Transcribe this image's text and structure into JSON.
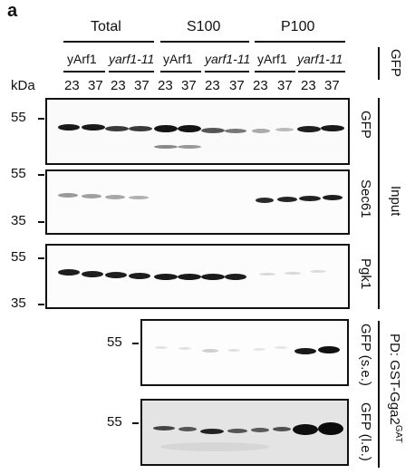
{
  "figure": {
    "panel_letter": "a",
    "fractions": [
      "Total",
      "S100",
      "P100"
    ],
    "strains": [
      "yArf1",
      "yarf1-11",
      "yArf1",
      "yarf1-11",
      "yArf1",
      "yarf1-11"
    ],
    "kda_label": "kDa",
    "temperatures": [
      "23",
      "37",
      "23",
      "37",
      "23",
      "37",
      "23",
      "37",
      "23",
      "37",
      "23",
      "37"
    ],
    "gfp_label": "GFP",
    "input_label": "Input",
    "pulldown_label": "PD: GST-Gga2",
    "pulldown_superscript": "GAT",
    "blots": [
      {
        "label": "GFP",
        "markers": [
          "55"
        ]
      },
      {
        "label": "Sec61",
        "markers": [
          "55",
          "35"
        ]
      },
      {
        "label": "Pgk1",
        "markers": [
          "55",
          "35"
        ]
      },
      {
        "label": "GFP (s.e.)",
        "markers": [
          "55"
        ]
      },
      {
        "label": "GFP (l.e.)",
        "markers": [
          "55"
        ]
      }
    ]
  }
}
